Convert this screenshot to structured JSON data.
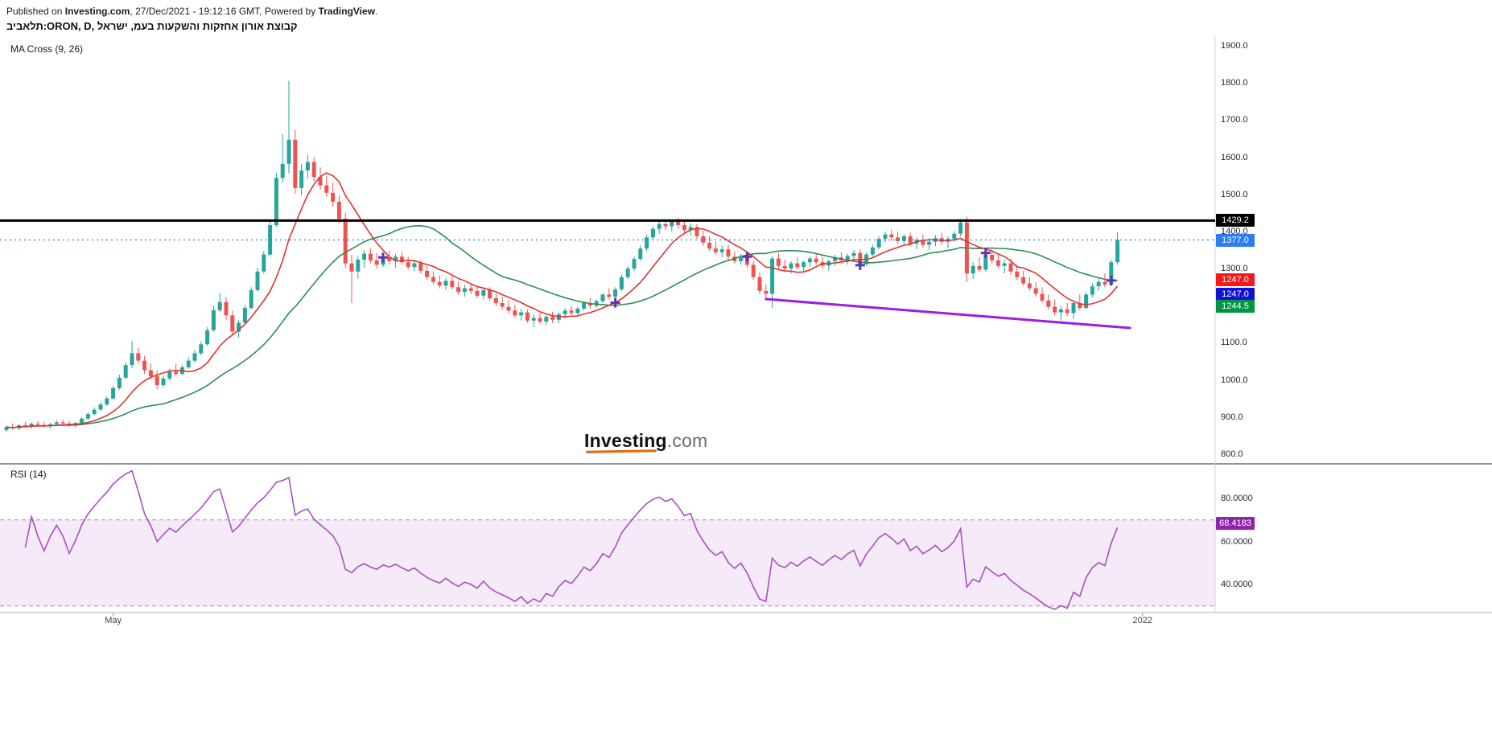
{
  "header": {
    "publish_prefix": "Published on ",
    "publish_site": "Investing.com",
    "publish_middle": ", 27/Dec/2021 - 19:12:16 GMT, Powered by ",
    "publish_engine": "TradingView",
    "publish_suffix": ".",
    "title": "תלאביב:ORON, D, קבוצת אורון אחזקות והשקעות בעמ, ישראל",
    "ma_label": "MA Cross (9, 26)",
    "rsi_label": "RSI (14)"
  },
  "watermark": {
    "brand": "Investing",
    "tld": ".com"
  },
  "chart_data": {
    "type": "candlestick",
    "symbol": "ORON",
    "exchange_he": "תלאביב",
    "company_he": "קבוצת אורון אחזקות והשקעות בעמ",
    "country_he": "ישראל",
    "interval": "D",
    "last_price": 1377.0,
    "price_axis": {
      "min": 800,
      "max": 1900,
      "ticks": [
        1900,
        1800,
        1700,
        1600,
        1500,
        1400,
        1300,
        1200,
        1100,
        1000,
        900,
        800
      ]
    },
    "time_labels": [
      {
        "label": "May",
        "index": 17
      },
      {
        "label": "2022",
        "index": 181
      }
    ],
    "levels": [
      {
        "price": 1429.2,
        "color": "#000000",
        "style": "solid",
        "width": 3,
        "badge": "1429.2"
      },
      {
        "price": 1377.0,
        "color": "#2b7cf6",
        "style": "dotted",
        "width": 1.2,
        "badge": "1377.0"
      }
    ],
    "price_badges": [
      {
        "text": "1429.2",
        "price": 1429.2,
        "offset": 0,
        "bg": "#000000"
      },
      {
        "text": "1377.0",
        "price": 1377.0,
        "offset": 0,
        "bg": "#2b7cf6"
      },
      {
        "text": "1247.0",
        "price": 1247.0,
        "offset": -11,
        "bg": "#f51818"
      },
      {
        "text": "1247.0",
        "price": 1247.0,
        "offset": 7,
        "bg": "#0f0fd6"
      },
      {
        "text": "1244.5",
        "price": 1244.5,
        "offset": 21,
        "bg": "#00963f"
      }
    ],
    "trendline": {
      "x1_index": 121,
      "price1": 1218,
      "x2_index": 179,
      "price2": 1140,
      "color": "#9a1fe0",
      "width": 3
    },
    "cross_markers": {
      "color": "#5e35b1",
      "points": [
        {
          "index": 60,
          "price": 1330
        },
        {
          "index": 97,
          "price": 1208
        },
        {
          "index": 118,
          "price": 1332
        },
        {
          "index": 136,
          "price": 1309
        },
        {
          "index": 156,
          "price": 1342
        },
        {
          "index": 176,
          "price": 1268
        }
      ]
    },
    "ma_fast": {
      "period": 9,
      "color": "#e0342f"
    },
    "ma_slow": {
      "period": 26,
      "color": "#2e8b57"
    },
    "candle_colors": {
      "up": "#26a69a",
      "down": "#ef5350"
    },
    "rsi": {
      "period": 14,
      "last": "68.4183",
      "upper": 70,
      "lower": 30,
      "ticks": [
        80,
        60,
        40
      ],
      "line_color": "#aa4fbe",
      "band_fill": "#aa4fbe1f",
      "band_edge": "#b57fd1",
      "badge_bg": "#8e24aa"
    },
    "candles": [
      [
        865,
        877,
        860,
        873
      ],
      [
        873,
        883,
        867,
        870
      ],
      [
        870,
        881,
        865,
        878
      ],
      [
        878,
        887,
        873,
        875
      ],
      [
        875,
        885,
        868,
        882
      ],
      [
        882,
        889,
        875,
        879
      ],
      [
        879,
        887,
        872,
        876
      ],
      [
        876,
        884,
        868,
        881
      ],
      [
        881,
        891,
        876,
        886
      ],
      [
        886,
        893,
        878,
        883
      ],
      [
        883,
        890,
        873,
        877
      ],
      [
        877,
        887,
        871,
        884
      ],
      [
        884,
        900,
        880,
        896
      ],
      [
        896,
        912,
        892,
        908
      ],
      [
        908,
        926,
        904,
        920
      ],
      [
        920,
        940,
        916,
        934
      ],
      [
        934,
        956,
        930,
        950
      ],
      [
        950,
        984,
        946,
        978
      ],
      [
        978,
        1014,
        974,
        1006
      ],
      [
        1006,
        1048,
        1002,
        1040
      ],
      [
        1040,
        1105,
        1032,
        1072
      ],
      [
        1072,
        1086,
        1044,
        1052
      ],
      [
        1052,
        1064,
        1016,
        1026
      ],
      [
        1026,
        1044,
        1000,
        1010
      ],
      [
        1010,
        1026,
        974,
        986
      ],
      [
        986,
        1012,
        980,
        1004
      ],
      [
        1004,
        1030,
        998,
        1022
      ],
      [
        1022,
        1044,
        1010,
        1016
      ],
      [
        1016,
        1040,
        1012,
        1034
      ],
      [
        1034,
        1060,
        1030,
        1052
      ],
      [
        1052,
        1080,
        1046,
        1072
      ],
      [
        1072,
        1104,
        1066,
        1096
      ],
      [
        1096,
        1142,
        1092,
        1134
      ],
      [
        1134,
        1200,
        1130,
        1188
      ],
      [
        1188,
        1235,
        1182,
        1210
      ],
      [
        1210,
        1224,
        1162,
        1174
      ],
      [
        1174,
        1187,
        1120,
        1130
      ],
      [
        1130,
        1162,
        1114,
        1154
      ],
      [
        1154,
        1202,
        1150,
        1194
      ],
      [
        1194,
        1250,
        1190,
        1242
      ],
      [
        1242,
        1302,
        1238,
        1292
      ],
      [
        1292,
        1347,
        1287,
        1338
      ],
      [
        1338,
        1427,
        1332,
        1417
      ],
      [
        1417,
        1557,
        1412,
        1544
      ],
      [
        1544,
        1662,
        1532,
        1582
      ],
      [
        1582,
        1806,
        1557,
        1647
      ],
      [
        1647,
        1674,
        1502,
        1517
      ],
      [
        1517,
        1582,
        1497,
        1564
      ],
      [
        1564,
        1607,
        1542,
        1587
      ],
      [
        1587,
        1600,
        1534,
        1547
      ],
      [
        1547,
        1572,
        1512,
        1524
      ],
      [
        1524,
        1550,
        1494,
        1504
      ],
      [
        1504,
        1532,
        1467,
        1480
      ],
      [
        1480,
        1497,
        1422,
        1434
      ],
      [
        1434,
        1450,
        1302,
        1314
      ],
      [
        1314,
        1337,
        1207,
        1292
      ],
      [
        1292,
        1334,
        1272,
        1324
      ],
      [
        1324,
        1350,
        1302,
        1340
      ],
      [
        1340,
        1354,
        1314,
        1322
      ],
      [
        1322,
        1342,
        1300,
        1310
      ],
      [
        1310,
        1337,
        1304,
        1330
      ],
      [
        1330,
        1347,
        1312,
        1320
      ],
      [
        1320,
        1340,
        1302,
        1332
      ],
      [
        1332,
        1344,
        1310,
        1317
      ],
      [
        1317,
        1332,
        1297,
        1304
      ],
      [
        1304,
        1324,
        1292,
        1314
      ],
      [
        1314,
        1322,
        1287,
        1294
      ],
      [
        1294,
        1307,
        1270,
        1277
      ],
      [
        1277,
        1292,
        1257,
        1264
      ],
      [
        1264,
        1282,
        1247,
        1254
      ],
      [
        1254,
        1274,
        1242,
        1267
      ],
      [
        1267,
        1280,
        1244,
        1250
      ],
      [
        1250,
        1264,
        1230,
        1237
      ],
      [
        1237,
        1257,
        1224,
        1247
      ],
      [
        1247,
        1260,
        1232,
        1240
      ],
      [
        1240,
        1252,
        1220,
        1227
      ],
      [
        1227,
        1247,
        1217,
        1242
      ],
      [
        1242,
        1250,
        1214,
        1220
      ],
      [
        1220,
        1234,
        1200,
        1207
      ],
      [
        1207,
        1224,
        1190,
        1197
      ],
      [
        1197,
        1214,
        1180,
        1187
      ],
      [
        1187,
        1202,
        1167,
        1174
      ],
      [
        1174,
        1192,
        1160,
        1182
      ],
      [
        1182,
        1190,
        1154,
        1160
      ],
      [
        1160,
        1177,
        1142,
        1167
      ],
      [
        1167,
        1180,
        1150,
        1157
      ],
      [
        1157,
        1174,
        1147,
        1170
      ],
      [
        1170,
        1184,
        1154,
        1162
      ],
      [
        1162,
        1182,
        1152,
        1177
      ],
      [
        1177,
        1194,
        1164,
        1187
      ],
      [
        1187,
        1200,
        1170,
        1180
      ],
      [
        1180,
        1197,
        1172,
        1192
      ],
      [
        1192,
        1212,
        1187,
        1207
      ],
      [
        1207,
        1220,
        1192,
        1200
      ],
      [
        1200,
        1217,
        1194,
        1212
      ],
      [
        1212,
        1234,
        1207,
        1230
      ],
      [
        1230,
        1247,
        1217,
        1224
      ],
      [
        1224,
        1250,
        1220,
        1244
      ],
      [
        1244,
        1284,
        1240,
        1277
      ],
      [
        1277,
        1307,
        1272,
        1300
      ],
      [
        1300,
        1332,
        1294,
        1326
      ],
      [
        1326,
        1362,
        1320,
        1354
      ],
      [
        1354,
        1392,
        1348,
        1384
      ],
      [
        1384,
        1414,
        1378,
        1407
      ],
      [
        1407,
        1430,
        1394,
        1420
      ],
      [
        1420,
        1434,
        1404,
        1414
      ],
      [
        1414,
        1432,
        1400,
        1427
      ],
      [
        1427,
        1437,
        1407,
        1417
      ],
      [
        1417,
        1430,
        1397,
        1404
      ],
      [
        1404,
        1422,
        1390,
        1412
      ],
      [
        1412,
        1420,
        1380,
        1387
      ],
      [
        1387,
        1402,
        1362,
        1370
      ],
      [
        1370,
        1387,
        1347,
        1354
      ],
      [
        1354,
        1372,
        1337,
        1344
      ],
      [
        1344,
        1362,
        1330,
        1352
      ],
      [
        1352,
        1364,
        1324,
        1332
      ],
      [
        1332,
        1347,
        1314,
        1320
      ],
      [
        1320,
        1340,
        1310,
        1330
      ],
      [
        1330,
        1342,
        1302,
        1310
      ],
      [
        1310,
        1320,
        1270,
        1277
      ],
      [
        1277,
        1290,
        1230,
        1240
      ],
      [
        1240,
        1257,
        1220,
        1232
      ],
      [
        1232,
        1334,
        1194,
        1327
      ],
      [
        1327,
        1342,
        1297,
        1307
      ],
      [
        1307,
        1324,
        1290,
        1300
      ],
      [
        1300,
        1320,
        1287,
        1314
      ],
      [
        1314,
        1330,
        1297,
        1304
      ],
      [
        1304,
        1322,
        1292,
        1317
      ],
      [
        1317,
        1334,
        1304,
        1327
      ],
      [
        1327,
        1340,
        1310,
        1317
      ],
      [
        1317,
        1332,
        1300,
        1308
      ],
      [
        1308,
        1324,
        1294,
        1320
      ],
      [
        1320,
        1337,
        1307,
        1330
      ],
      [
        1330,
        1344,
        1314,
        1322
      ],
      [
        1322,
        1340,
        1310,
        1334
      ],
      [
        1334,
        1350,
        1320,
        1342
      ],
      [
        1342,
        1352,
        1298,
        1312
      ],
      [
        1312,
        1344,
        1307,
        1338
      ],
      [
        1338,
        1364,
        1332,
        1357
      ],
      [
        1357,
        1387,
        1352,
        1380
      ],
      [
        1380,
        1400,
        1370,
        1392
      ],
      [
        1392,
        1404,
        1374,
        1384
      ],
      [
        1384,
        1400,
        1367,
        1374
      ],
      [
        1374,
        1394,
        1362,
        1387
      ],
      [
        1387,
        1397,
        1360,
        1367
      ],
      [
        1367,
        1384,
        1352,
        1377
      ],
      [
        1377,
        1392,
        1357,
        1364
      ],
      [
        1364,
        1382,
        1350,
        1372
      ],
      [
        1372,
        1390,
        1360,
        1382
      ],
      [
        1382,
        1397,
        1364,
        1372
      ],
      [
        1372,
        1387,
        1354,
        1380
      ],
      [
        1380,
        1402,
        1372,
        1394
      ],
      [
        1394,
        1434,
        1387,
        1424
      ],
      [
        1424,
        1440,
        1264,
        1287
      ],
      [
        1287,
        1317,
        1272,
        1307
      ],
      [
        1307,
        1330,
        1290,
        1297
      ],
      [
        1297,
        1344,
        1292,
        1337
      ],
      [
        1337,
        1352,
        1314,
        1322
      ],
      [
        1322,
        1340,
        1300,
        1307
      ],
      [
        1307,
        1324,
        1287,
        1314
      ],
      [
        1314,
        1327,
        1284,
        1292
      ],
      [
        1292,
        1310,
        1270,
        1277
      ],
      [
        1277,
        1294,
        1254,
        1260
      ],
      [
        1260,
        1277,
        1240,
        1247
      ],
      [
        1247,
        1264,
        1224,
        1232
      ],
      [
        1232,
        1250,
        1207,
        1214
      ],
      [
        1214,
        1230,
        1190,
        1197
      ],
      [
        1197,
        1217,
        1174,
        1182
      ],
      [
        1182,
        1200,
        1160,
        1190
      ],
      [
        1190,
        1207,
        1172,
        1180
      ],
      [
        1180,
        1214,
        1164,
        1207
      ],
      [
        1207,
        1230,
        1187,
        1194
      ],
      [
        1194,
        1237,
        1190,
        1230
      ],
      [
        1230,
        1260,
        1222,
        1252
      ],
      [
        1252,
        1274,
        1240,
        1264
      ],
      [
        1264,
        1287,
        1250,
        1257
      ],
      [
        1257,
        1324,
        1252,
        1317
      ],
      [
        1317,
        1398,
        1310,
        1377
      ]
    ]
  }
}
